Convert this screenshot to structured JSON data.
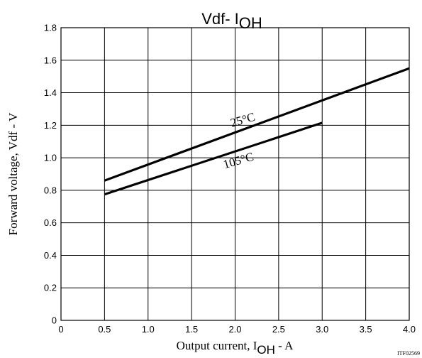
{
  "chart_data": {
    "type": "line",
    "title": {
      "main": "Vdf- I",
      "sub": "OH"
    },
    "xlabel": {
      "pre": "Output current, I",
      "sub": "OH",
      "post": " - A"
    },
    "ylabel": "Forward voltage, Vdf - V",
    "xlim": [
      0,
      4.0
    ],
    "ylim": [
      0,
      1.8
    ],
    "xticks": [
      "0",
      "0.5",
      "1.0",
      "1.5",
      "2.0",
      "2.5",
      "3.0",
      "3.5",
      "4.0"
    ],
    "yticks": [
      "0",
      "0.2",
      "0.4",
      "0.6",
      "0.8",
      "1.0",
      "1.2",
      "1.4",
      "1.6",
      "1.8"
    ],
    "grid": true,
    "series": [
      {
        "name": "25°C",
        "x": [
          0.5,
          4.0
        ],
        "y": [
          0.86,
          1.55
        ]
      },
      {
        "name": "105°C",
        "x": [
          0.5,
          3.0
        ],
        "y": [
          0.775,
          1.215
        ]
      }
    ],
    "annotations": [
      {
        "text": "25°C",
        "x": 2.1,
        "y": 1.21,
        "angle": -16
      },
      {
        "text": "105°C",
        "x": 2.05,
        "y": 0.96,
        "angle": -16
      }
    ],
    "figure_code": "ITF02569",
    "line_color": "#000000"
  }
}
